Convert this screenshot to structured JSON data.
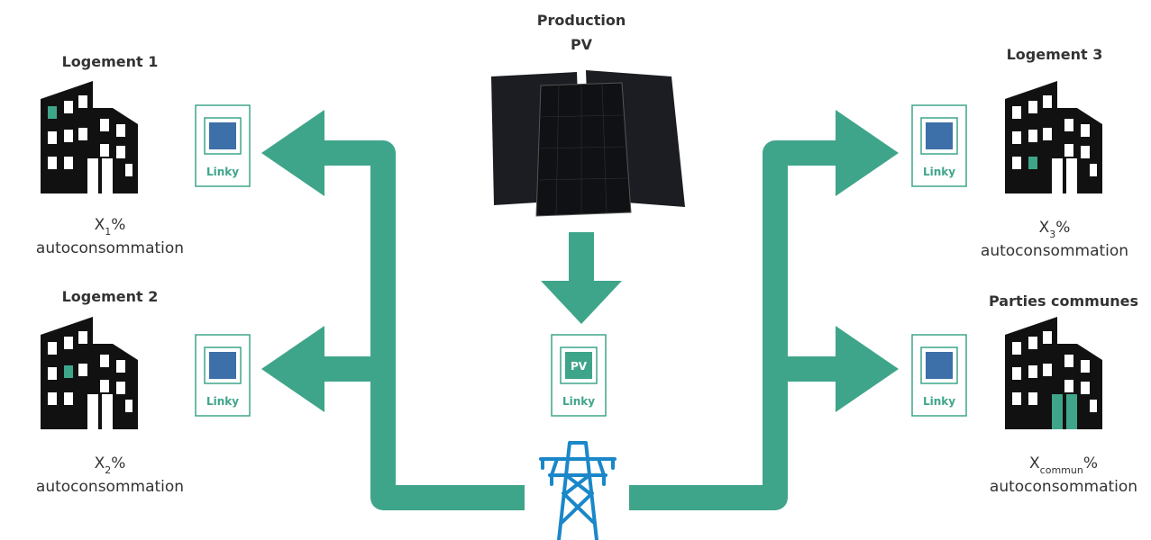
{
  "production": {
    "title": [
      "Production",
      "PV"
    ],
    "meter": {
      "badge": "PV",
      "label": "Linky"
    }
  },
  "households": [
    {
      "label": "Logement 1",
      "meter": "Linky",
      "share": {
        "base": "X",
        "sub": "1",
        "unit": "%"
      },
      "caption": "autoconsommation"
    },
    {
      "label": "Logement 2",
      "meter": "Linky",
      "share": {
        "base": "X",
        "sub": "2",
        "unit": "%"
      },
      "caption": "autoconsommation"
    },
    {
      "label": "Logement 3",
      "meter": "Linky",
      "share": {
        "base": "X",
        "sub": "3",
        "unit": "%"
      },
      "caption": "autoconsommation"
    },
    {
      "label": "Parties communes",
      "meter": "Linky",
      "share": {
        "base": "X",
        "sub": "commun",
        "unit": "%"
      },
      "caption": "autoconsommation"
    }
  ]
}
